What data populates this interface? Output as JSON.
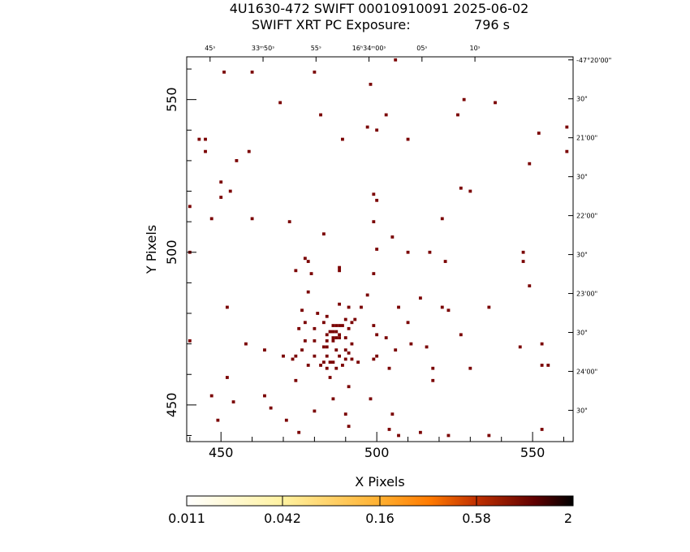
{
  "header": {
    "title": "4U1630-472 SWIFT 00010910091 2025-06-02",
    "subtitle_label": "SWIFT XRT PC Exposure:",
    "subtitle_value": "796 s"
  },
  "colorbar": {
    "tick_labels": [
      "0.011",
      "0.042",
      "0.16",
      "0.58",
      "2"
    ],
    "colors": [
      "#ffffff",
      "#fff7b0",
      "#ffd050",
      "#ff8a10",
      "#d04000",
      "#6a0000",
      "#000000"
    ]
  },
  "chart_data": {
    "type": "scatter",
    "xlabel": "X Pixels",
    "ylabel": "Y Pixels",
    "xlim": [
      439,
      563
    ],
    "ylim": [
      438,
      564
    ],
    "x_ticks": [
      450,
      500,
      550
    ],
    "y_ticks": [
      450,
      500,
      550
    ],
    "ra_labels": [
      {
        "ra": 10,
        "text": "10ˢ"
      },
      {
        "ra": 5,
        "text": "05ˢ"
      },
      {
        "ra": 0,
        "text": "16ʰ34ᵐ00ˢ"
      },
      {
        "ra": -5,
        "text": "55ˢ"
      },
      {
        "ra": -10,
        "text": "33ᵐ50ˢ"
      },
      {
        "ra": -15,
        "text": "45ˢ"
      }
    ],
    "dec_labels": [
      {
        "dec": 0,
        "text": "-47°20'00\""
      },
      {
        "dec": 30,
        "text": "30\""
      },
      {
        "dec": 60,
        "text": "21'00\""
      },
      {
        "dec": 90,
        "text": "30\""
      },
      {
        "dec": 120,
        "text": "22'00\""
      },
      {
        "dec": 150,
        "text": "30\""
      },
      {
        "dec": 180,
        "text": "23'00\""
      },
      {
        "dec": 210,
        "text": "30\""
      },
      {
        "dec": 240,
        "text": "24'00\""
      },
      {
        "dec": 270,
        "text": "30\""
      }
    ],
    "point_color": "#7a0000",
    "points": [
      [
        451,
        559
      ],
      [
        460,
        559
      ],
      [
        480,
        559
      ],
      [
        506,
        563
      ],
      [
        498,
        555
      ],
      [
        469,
        549
      ],
      [
        482,
        545
      ],
      [
        503,
        545
      ],
      [
        497,
        541
      ],
      [
        500,
        540
      ],
      [
        528,
        550
      ],
      [
        538,
        549
      ],
      [
        526,
        545
      ],
      [
        552,
        539
      ],
      [
        561,
        541
      ],
      [
        561,
        533
      ],
      [
        489,
        537
      ],
      [
        510,
        537
      ],
      [
        443,
        537
      ],
      [
        445,
        537
      ],
      [
        445,
        533
      ],
      [
        455,
        530
      ],
      [
        459,
        533
      ],
      [
        549,
        529
      ],
      [
        450,
        523
      ],
      [
        453,
        520
      ],
      [
        450,
        518
      ],
      [
        499,
        519
      ],
      [
        500,
        517
      ],
      [
        527,
        521
      ],
      [
        530,
        520
      ],
      [
        440,
        515
      ],
      [
        447,
        511
      ],
      [
        460,
        511
      ],
      [
        472,
        510
      ],
      [
        499,
        510
      ],
      [
        521,
        511
      ],
      [
        483,
        506
      ],
      [
        505,
        505
      ],
      [
        500,
        501
      ],
      [
        510,
        500
      ],
      [
        517,
        500
      ],
      [
        547,
        500
      ],
      [
        440,
        500
      ],
      [
        477,
        498
      ],
      [
        478,
        497
      ],
      [
        474,
        494
      ],
      [
        488,
        495
      ],
      [
        488,
        494
      ],
      [
        479,
        493
      ],
      [
        547,
        497
      ],
      [
        522,
        497
      ],
      [
        499,
        493
      ],
      [
        549,
        489
      ],
      [
        478,
        487
      ],
      [
        497,
        486
      ],
      [
        514,
        485
      ],
      [
        452,
        482
      ],
      [
        476,
        481
      ],
      [
        481,
        480
      ],
      [
        488,
        483
      ],
      [
        491,
        482
      ],
      [
        495,
        482
      ],
      [
        507,
        482
      ],
      [
        521,
        482
      ],
      [
        523,
        481
      ],
      [
        536,
        482
      ],
      [
        484,
        479
      ],
      [
        490,
        478
      ],
      [
        493,
        478
      ],
      [
        477,
        477
      ],
      [
        483,
        477
      ],
      [
        492,
        477
      ],
      [
        510,
        477
      ],
      [
        486,
        476
      ],
      [
        487,
        476
      ],
      [
        488,
        476
      ],
      [
        475,
        475
      ],
      [
        480,
        475
      ],
      [
        489,
        476
      ],
      [
        491,
        475
      ],
      [
        499,
        476
      ],
      [
        485,
        474
      ],
      [
        486,
        474
      ],
      [
        487,
        474
      ],
      [
        488,
        473
      ],
      [
        484,
        473
      ],
      [
        486,
        472
      ],
      [
        487,
        472
      ],
      [
        488,
        472
      ],
      [
        490,
        472
      ],
      [
        484,
        471
      ],
      [
        486,
        471
      ],
      [
        500,
        473
      ],
      [
        503,
        472
      ],
      [
        527,
        473
      ],
      [
        440,
        471
      ],
      [
        477,
        471
      ],
      [
        480,
        471
      ],
      [
        492,
        470
      ],
      [
        458,
        470
      ],
      [
        511,
        470
      ],
      [
        546,
        469
      ],
      [
        553,
        470
      ],
      [
        464,
        468
      ],
      [
        476,
        468
      ],
      [
        483,
        469
      ],
      [
        484,
        469
      ],
      [
        487,
        468
      ],
      [
        490,
        468
      ],
      [
        491,
        467
      ],
      [
        506,
        468
      ],
      [
        516,
        469
      ],
      [
        470,
        466
      ],
      [
        474,
        466
      ],
      [
        480,
        466
      ],
      [
        484,
        466
      ],
      [
        488,
        466
      ],
      [
        490,
        465
      ],
      [
        473,
        465
      ],
      [
        485,
        464
      ],
      [
        483,
        464
      ],
      [
        486,
        464
      ],
      [
        489,
        463
      ],
      [
        492,
        465
      ],
      [
        499,
        465
      ],
      [
        494,
        464
      ],
      [
        500,
        466
      ],
      [
        478,
        463
      ],
      [
        482,
        463
      ],
      [
        487,
        462
      ],
      [
        484,
        462
      ],
      [
        504,
        462
      ],
      [
        518,
        462
      ],
      [
        530,
        462
      ],
      [
        553,
        463
      ],
      [
        555,
        463
      ],
      [
        518,
        458
      ],
      [
        485,
        459
      ],
      [
        452,
        459
      ],
      [
        474,
        458
      ],
      [
        491,
        456
      ],
      [
        464,
        453
      ],
      [
        447,
        453
      ],
      [
        486,
        452
      ],
      [
        498,
        452
      ],
      [
        454,
        451
      ],
      [
        466,
        449
      ],
      [
        480,
        448
      ],
      [
        490,
        447
      ],
      [
        505,
        447
      ],
      [
        471,
        445
      ],
      [
        449,
        445
      ],
      [
        491,
        443
      ],
      [
        514,
        441
      ],
      [
        475,
        441
      ],
      [
        504,
        442
      ],
      [
        507,
        440
      ],
      [
        553,
        442
      ],
      [
        523,
        440
      ],
      [
        536,
        440
      ]
    ]
  }
}
